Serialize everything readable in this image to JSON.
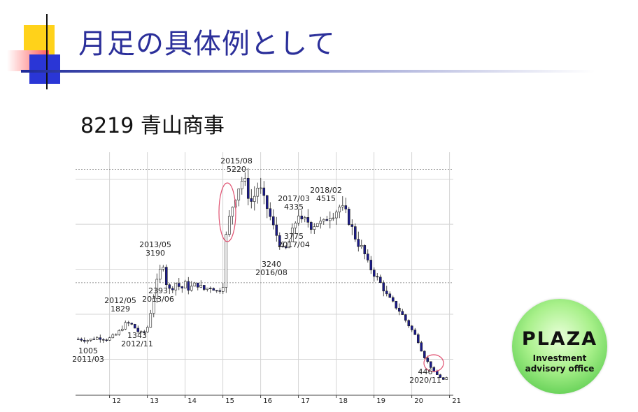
{
  "slide": {
    "title": "月足の具体例として",
    "subtitle": "8219 青山商事"
  },
  "logo": {
    "name": "PLAZA",
    "line1": "Investment",
    "line2": "advisory office"
  },
  "chart_data": {
    "type": "candlestick",
    "x_ticks": [
      "12",
      "13",
      "14",
      "15",
      "16",
      "17",
      "18",
      "19",
      "20",
      "21"
    ],
    "x_range": [
      2011.1,
      2021.1
    ],
    "y_range": [
      200,
      5600
    ],
    "reference_lines": [
      2700,
      5220
    ],
    "grid": true,
    "annotations": [
      {
        "date": "2011/03",
        "value": 1005
      },
      {
        "date": "2012/05",
        "value": 1829
      },
      {
        "date": "2012/11",
        "value": 1343
      },
      {
        "date": "2013/06",
        "value": 2393
      },
      {
        "date": "2013/05",
        "value": 3190
      },
      {
        "date": "2015/08",
        "value": 5220
      },
      {
        "date": "2016/08",
        "value": 3240
      },
      {
        "date": "2017/04",
        "value": 3775
      },
      {
        "date": "2017/03",
        "value": 4335
      },
      {
        "date": "2018/02",
        "value": 4515
      },
      {
        "date": "2020/11",
        "value": 446
      }
    ],
    "annotation_text": {
      "a2011_03": [
        "1005",
        "2011/03"
      ],
      "a2012_05": [
        "2012/05",
        "1829"
      ],
      "a2012_11": [
        "1343",
        "2012/11"
      ],
      "a2013_06": [
        "2393",
        "2013/06"
      ],
      "a2013_05": [
        "2013/05",
        "3190"
      ],
      "a2015_08": [
        "2015/08",
        "5220"
      ],
      "a2016_08": [
        "3240",
        "2016/08"
      ],
      "a2017_04": [
        "3775",
        "2017/04"
      ],
      "a2017_03": [
        "2017/03",
        "4335"
      ],
      "a2018_02": [
        "2018/02",
        "4515"
      ],
      "a2020_11": [
        "446",
        "2020/11"
      ]
    },
    "close_path": [
      [
        2011.17,
        1450
      ],
      [
        2011.4,
        1420
      ],
      [
        2011.7,
        1480
      ],
      [
        2011.95,
        1440
      ],
      [
        2012.2,
        1560
      ],
      [
        2012.35,
        1720
      ],
      [
        2012.45,
        1810
      ],
      [
        2012.6,
        1760
      ],
      [
        2012.75,
        1620
      ],
      [
        2012.88,
        1560
      ],
      [
        2013.0,
        1700
      ],
      [
        2013.15,
        2300
      ],
      [
        2013.3,
        2900
      ],
      [
        2013.42,
        3120
      ],
      [
        2013.5,
        2700
      ],
      [
        2013.6,
        2520
      ],
      [
        2013.75,
        2700
      ],
      [
        2013.9,
        2560
      ],
      [
        2014.0,
        2680
      ],
      [
        2014.1,
        2560
      ],
      [
        2014.3,
        2680
      ],
      [
        2014.5,
        2550
      ],
      [
        2014.7,
        2620
      ],
      [
        2014.85,
        2500
      ],
      [
        2015.0,
        2620
      ],
      [
        2015.1,
        3900
      ],
      [
        2015.25,
        4400
      ],
      [
        2015.4,
        4800
      ],
      [
        2015.55,
        5050
      ],
      [
        2015.65,
        4700
      ],
      [
        2015.75,
        4500
      ],
      [
        2015.85,
        4650
      ],
      [
        2015.95,
        4900
      ],
      [
        2016.05,
        4600
      ],
      [
        2016.2,
        4300
      ],
      [
        2016.35,
        3900
      ],
      [
        2016.5,
        3600
      ],
      [
        2016.62,
        3350
      ],
      [
        2016.75,
        3600
      ],
      [
        2016.9,
        4000
      ],
      [
        2017.0,
        4250
      ],
      [
        2017.1,
        4000
      ],
      [
        2017.2,
        4120
      ],
      [
        2017.35,
        3950
      ],
      [
        2017.5,
        4050
      ],
      [
        2017.65,
        4000
      ],
      [
        2017.8,
        4200
      ],
      [
        2017.95,
        4250
      ],
      [
        2018.1,
        4400
      ],
      [
        2018.25,
        4250
      ],
      [
        2018.4,
        3950
      ],
      [
        2018.55,
        3600
      ],
      [
        2018.7,
        3450
      ],
      [
        2018.85,
        3100
      ],
      [
        2019.0,
        2900
      ],
      [
        2019.2,
        2650
      ],
      [
        2019.35,
        2400
      ],
      [
        2019.5,
        2250
      ],
      [
        2019.7,
        2050
      ],
      [
        2019.85,
        1850
      ],
      [
        2020.0,
        1650
      ],
      [
        2020.15,
        1450
      ],
      [
        2020.3,
        1100
      ],
      [
        2020.45,
        900
      ],
      [
        2020.6,
        700
      ],
      [
        2020.75,
        600
      ],
      [
        2020.88,
        520
      ],
      [
        2021.0,
        700
      ]
    ]
  }
}
